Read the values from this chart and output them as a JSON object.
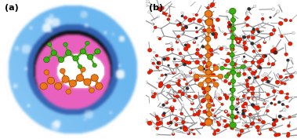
{
  "figsize": [
    3.79,
    1.77
  ],
  "dpi": 100,
  "panel_a": {
    "label": "(a)",
    "blue_surface": "#6ac0f0",
    "blue_dark": "#2050a0",
    "blue_shadow": "#1a3880",
    "pink_surface": "#e060c0",
    "white_center": "#ffffff",
    "orange": "#e87818",
    "green": "#38b010",
    "highlight": "#ffffff"
  },
  "panel_b": {
    "label": "(b)",
    "gray_stick": "#a0a0a0",
    "gray_dark": "#606060",
    "white_H": "#e8e8e8",
    "red_O": "#e82000",
    "black_C": "#303030",
    "orange": "#e87818",
    "green": "#38b010"
  }
}
